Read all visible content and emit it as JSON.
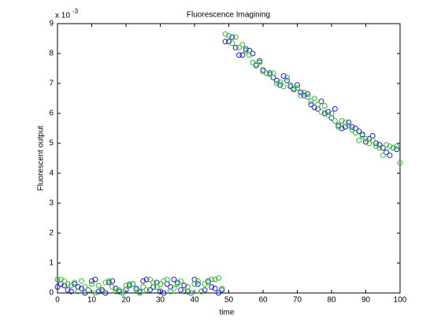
{
  "chart_data": {
    "type": "scatter",
    "title": "Fluorescence Imagining",
    "x_label": "time",
    "y_label": "Fluorescent output",
    "y_multiplier": {
      "base": "x 10",
      "exponent": "-3"
    },
    "x": [
      0,
      1,
      2,
      3,
      4,
      5,
      6,
      7,
      8,
      9,
      10,
      11,
      12,
      13,
      14,
      15,
      16,
      17,
      18,
      19,
      20,
      21,
      22,
      23,
      24,
      25,
      26,
      27,
      28,
      29,
      30,
      31,
      32,
      33,
      34,
      35,
      36,
      37,
      38,
      39,
      40,
      41,
      42,
      43,
      44,
      45,
      46,
      47,
      48,
      49,
      50,
      51,
      52,
      53,
      54,
      55,
      56,
      57,
      58,
      59,
      60,
      61,
      62,
      63,
      64,
      65,
      66,
      67,
      68,
      69,
      70,
      71,
      72,
      73,
      74,
      75,
      76,
      77,
      78,
      79,
      80,
      81,
      82,
      83,
      84,
      85,
      86,
      87,
      88,
      89,
      90,
      91,
      92,
      93,
      94,
      95,
      96,
      97,
      98,
      99,
      100
    ],
    "series": [
      {
        "color": "#1a1ad0",
        "values": [
          0.2,
          0.3,
          0.25,
          0.1,
          0.05,
          0.3,
          0.2,
          0.15,
          0.0,
          0.1,
          0.4,
          0.45,
          0.05,
          0.1,
          0.0,
          0.35,
          0.4,
          0.15,
          0.05,
          0.0,
          0.1,
          0.25,
          0.3,
          0.15,
          0.05,
          0.4,
          0.45,
          0.1,
          0.2,
          0.35,
          0.05,
          0.0,
          0.3,
          0.2,
          0.45,
          0.35,
          0.1,
          0.25,
          0.05,
          0.0,
          0.45,
          0.3,
          0.05,
          0.1,
          0.4,
          0.2,
          0.15,
          0.0,
          0.1,
          8.4,
          8.4,
          8.55,
          8.2,
          7.95,
          7.95,
          8.15,
          8.1,
          8.0,
          7.6,
          7.75,
          7.45,
          7.35,
          7.35,
          7.2,
          7.1,
          6.95,
          7.25,
          7.1,
          6.9,
          6.8,
          6.95,
          6.7,
          6.6,
          6.65,
          6.3,
          6.2,
          6.15,
          6.4,
          6.0,
          6.05,
          5.85,
          6.15,
          5.6,
          5.5,
          5.55,
          5.7,
          5.55,
          5.5,
          5.4,
          5.3,
          5.05,
          5.15,
          5.25,
          5.0,
          4.95,
          4.85,
          4.7,
          4.6,
          4.85,
          4.8,
          null
        ]
      },
      {
        "color": "#33b833",
        "values": [
          0.45,
          0.45,
          0.4,
          0.3,
          0.25,
          0.35,
          0.05,
          0.4,
          0.2,
          0.1,
          0.3,
          0.0,
          0.25,
          0.05,
          0.35,
          0.4,
          0.2,
          0.05,
          0.1,
          0.0,
          0.25,
          0.3,
          0.3,
          0.1,
          0.0,
          0.2,
          0.1,
          0.45,
          0.35,
          0.2,
          0.3,
          0.4,
          0.45,
          0.05,
          0.15,
          0.3,
          0.4,
          0.05,
          0.2,
          0.0,
          0.3,
          0.4,
          0.05,
          0.3,
          0.35,
          0.45,
          0.45,
          0.5,
          0.15,
          8.65,
          8.6,
          8.35,
          8.55,
          8.2,
          8.3,
          8.1,
          7.95,
          7.7,
          7.65,
          7.7,
          7.4,
          7.35,
          7.3,
          7.35,
          7.0,
          7.05,
          6.9,
          7.2,
          6.95,
          6.85,
          6.85,
          6.6,
          6.7,
          6.55,
          6.4,
          6.5,
          6.3,
          6.05,
          6.25,
          5.95,
          6.0,
          5.75,
          5.55,
          5.75,
          5.7,
          5.6,
          5.45,
          5.35,
          5.1,
          5.25,
          5.15,
          5.0,
          5.1,
          4.9,
          4.85,
          4.6,
          4.95,
          4.9,
          4.85,
          4.9,
          4.35
        ]
      }
    ],
    "xlim": [
      0,
      100
    ],
    "xticks": [
      0,
      10,
      20,
      30,
      40,
      50,
      60,
      70,
      80,
      90,
      100
    ],
    "ylim": [
      0,
      9
    ],
    "yticks": [
      0,
      1,
      2,
      3,
      4,
      5,
      6,
      7,
      8,
      9
    ]
  }
}
